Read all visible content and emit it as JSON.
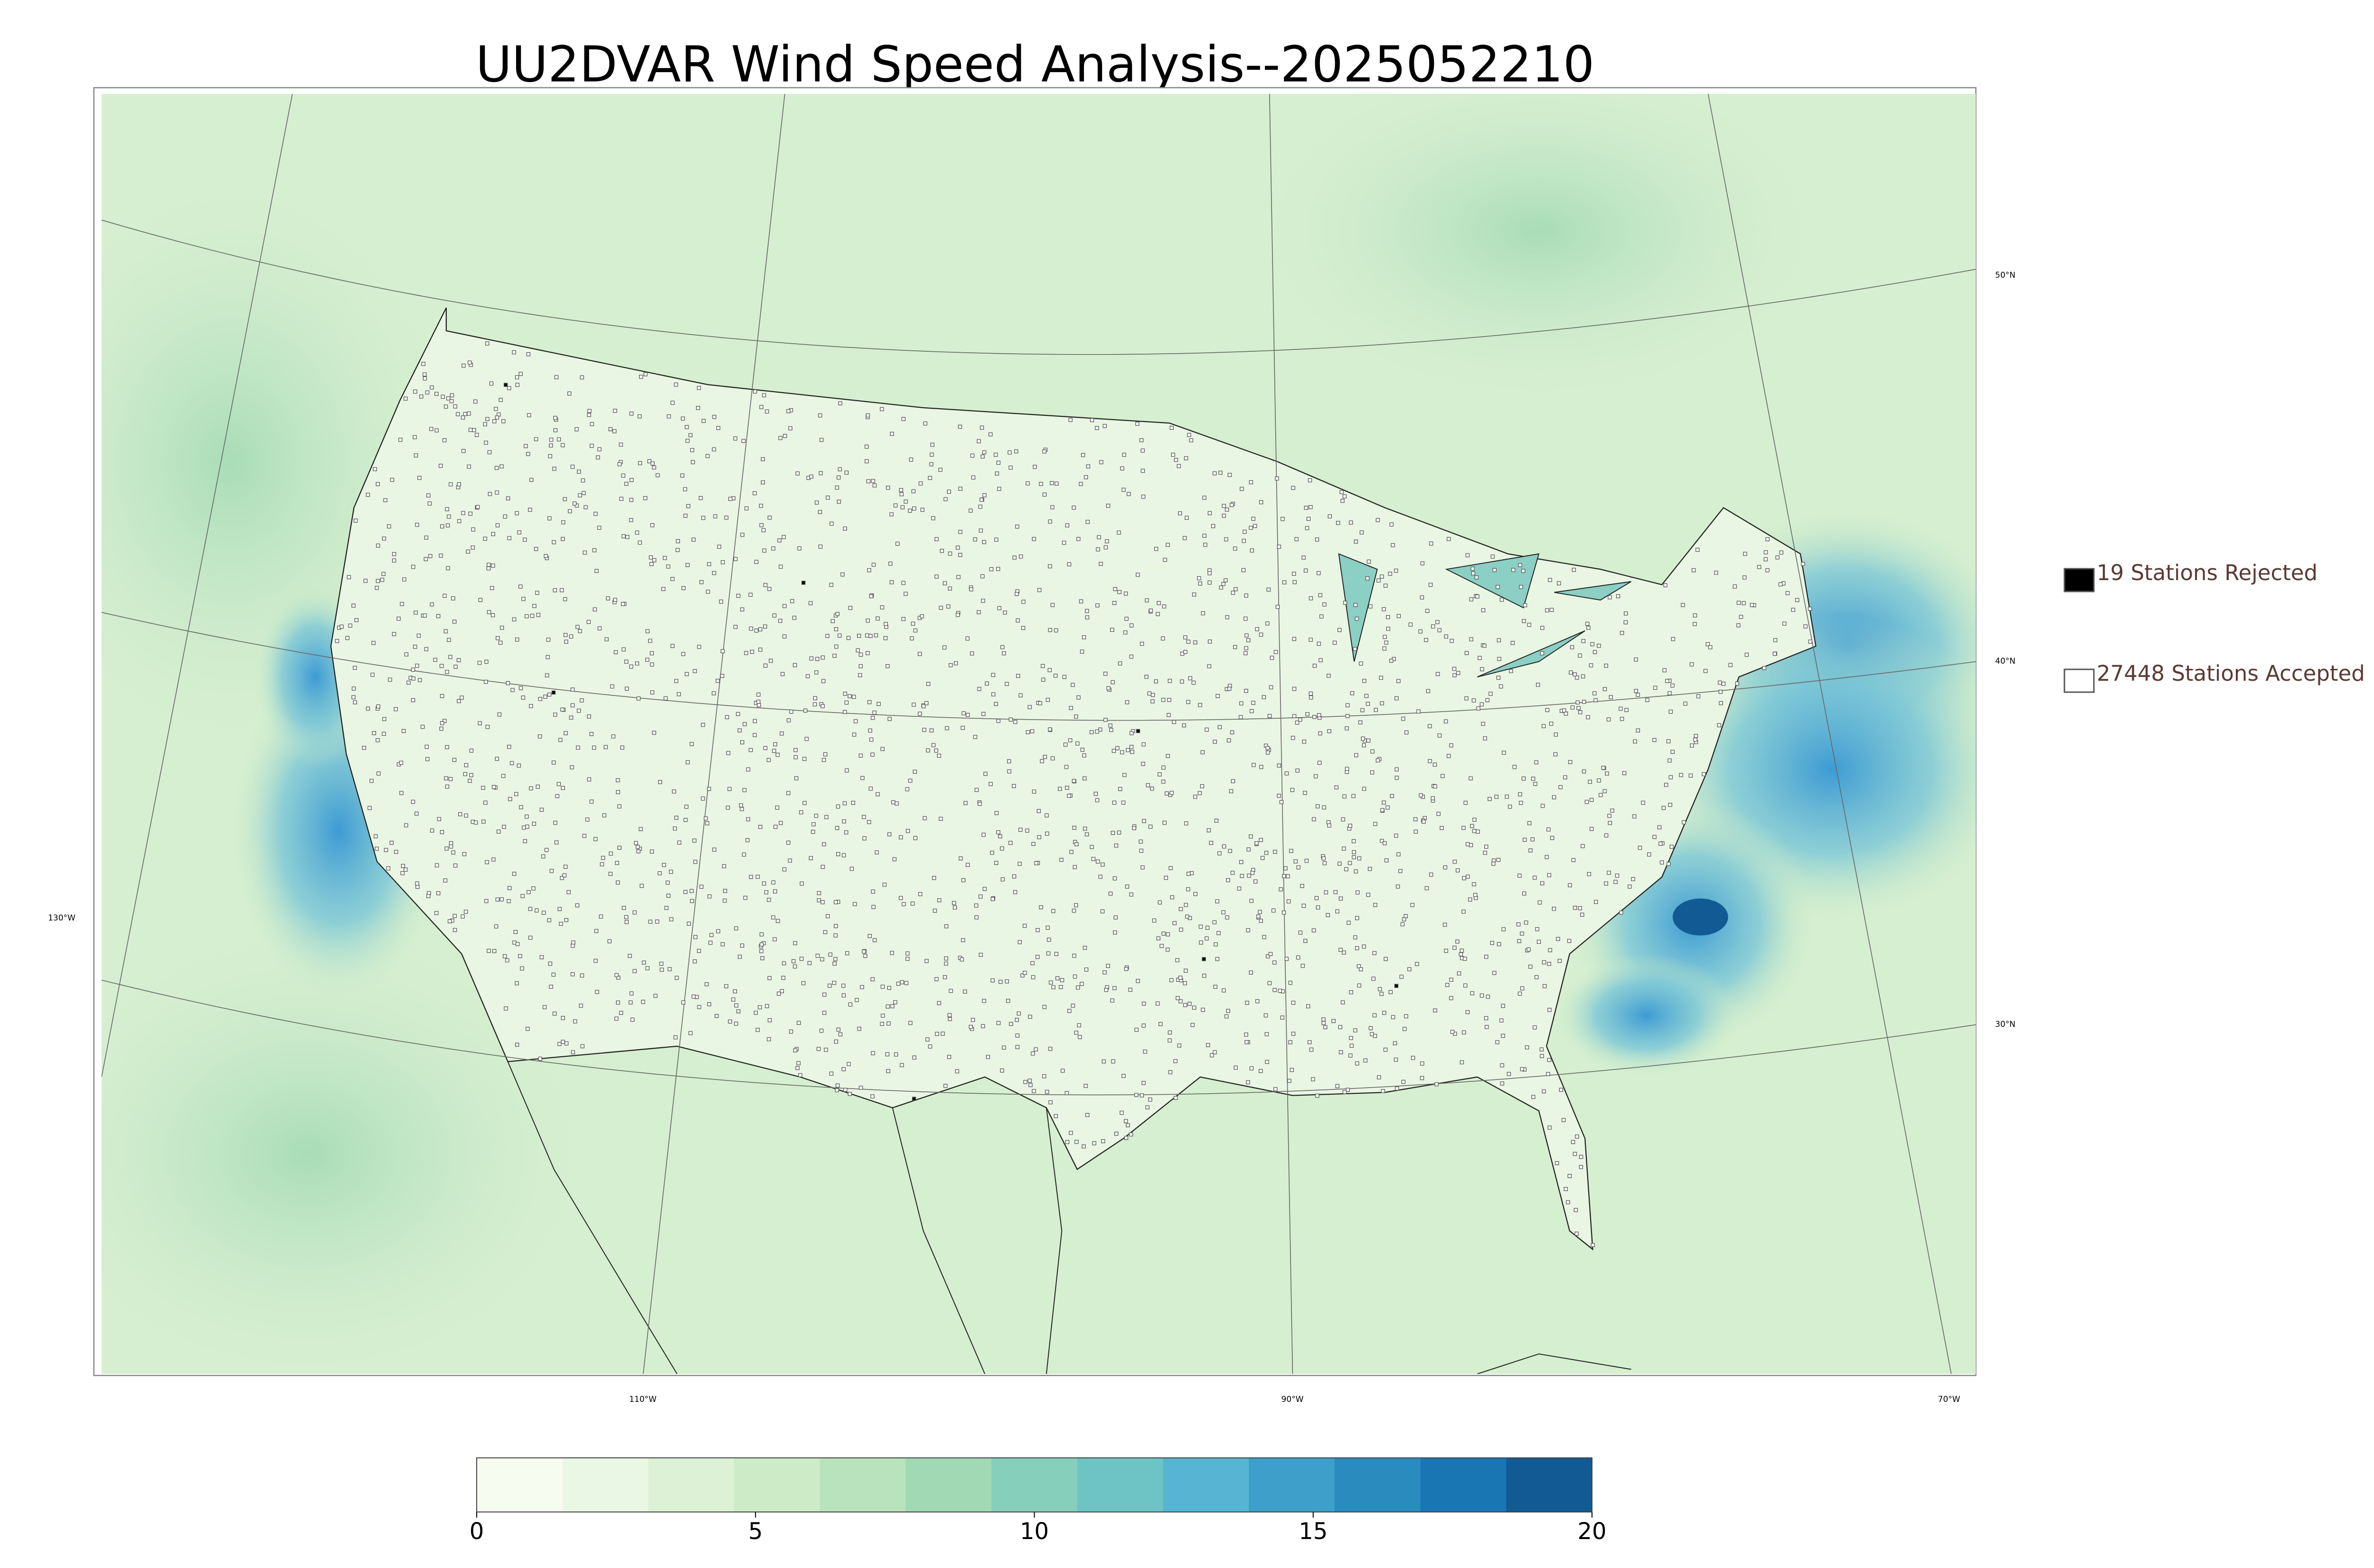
{
  "header": {
    "title": "UU2DVAR Wind Speed Analysis--2025052210"
  },
  "legend": {
    "items": [
      {
        "label": "19 Stations Rejected",
        "color": "#000000"
      },
      {
        "label": "27448 Stations Accepted",
        "color": "#ffffff"
      }
    ]
  },
  "map": {
    "latitude_labels": [
      "50°N",
      "40°N",
      "30°N"
    ],
    "longitude_labels": [
      "130°W",
      "110°W",
      "90°W",
      "70°W"
    ]
  },
  "colorbar": {
    "range": [
      0,
      20
    ],
    "ticks": [
      0,
      5,
      10,
      15,
      20
    ],
    "colors": [
      "#f7fcf0",
      "#eaf7e4",
      "#dcf1d6",
      "#cdebc7",
      "#b8e3bd",
      "#a1d9b5",
      "#86cfbb",
      "#6ec3c5",
      "#57b4d3",
      "#3f9fcb",
      "#2a8bbf",
      "#1a76b3",
      "#125a93"
    ]
  }
}
